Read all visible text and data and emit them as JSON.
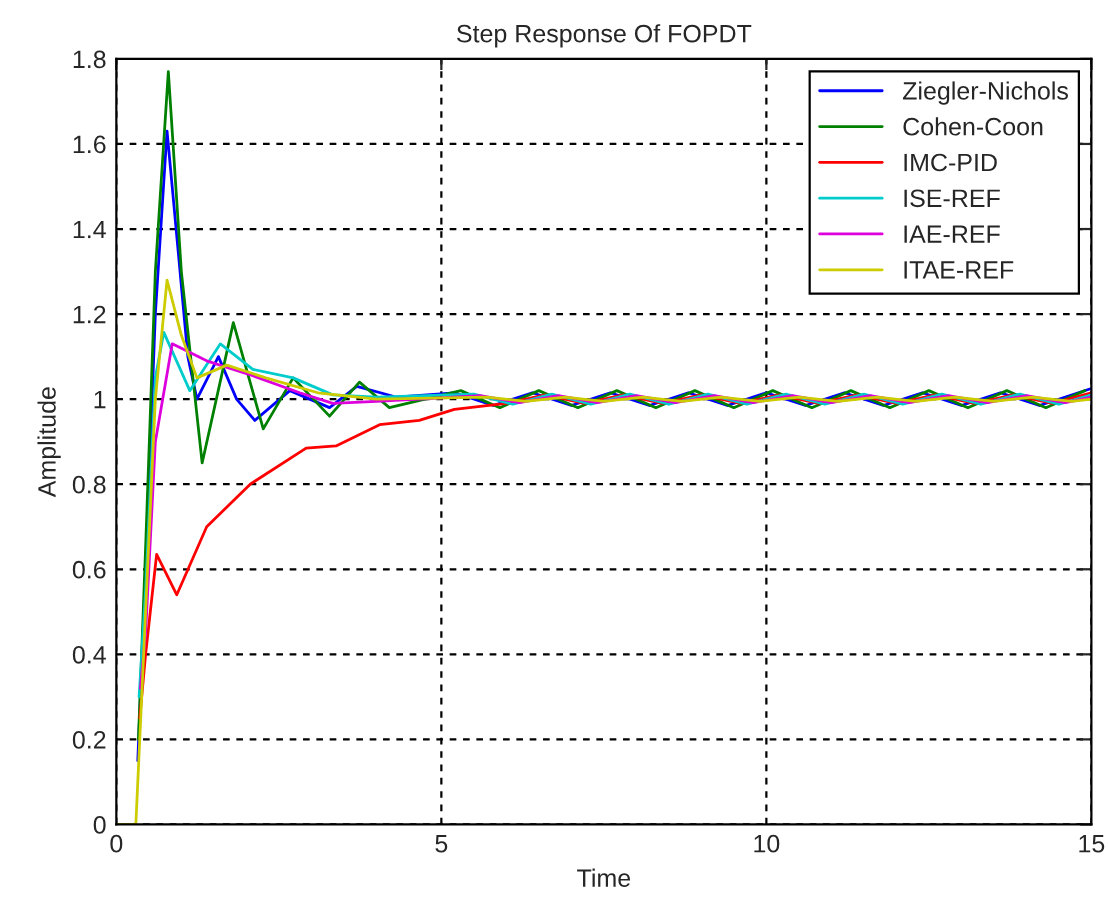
{
  "chart_data": {
    "type": "line",
    "title": "Step Response Of FOPDT",
    "xlabel": "Time",
    "ylabel": "Amplitude",
    "xlim": [
      0,
      15
    ],
    "xticks": [
      0,
      5,
      10,
      15
    ],
    "ylim": [
      0,
      1.8
    ],
    "yticks": [
      0,
      0.2,
      0.4,
      0.6,
      0.8,
      1,
      1.2,
      1.4,
      1.6,
      1.8
    ],
    "grid": true,
    "legend": "top right",
    "line_style": "solid",
    "marker": "none",
    "series": [
      {
        "name": "Ziegler-Nichols",
        "color": "#0000ff",
        "x": [
          0.33,
          0.45,
          0.6,
          0.78,
          0.95,
          1.1,
          1.24,
          1.57,
          1.85,
          2.13,
          2.67,
          3.28,
          3.7,
          4.3,
          5.2,
          5.8,
          6.4,
          7.0,
          7.6,
          8.2,
          8.8,
          9.4,
          10.0,
          10.6,
          11.2,
          11.8,
          12.4,
          13.0,
          13.6,
          14.2,
          14.8,
          15
        ],
        "values": [
          0.15,
          0.6,
          1.2,
          1.63,
          1.35,
          1.1,
          1.0,
          1.1,
          1.0,
          0.95,
          1.02,
          0.98,
          1.03,
          1.005,
          1.015,
          0.985,
          1.015,
          0.985,
          1.015,
          0.985,
          1.015,
          0.985,
          1.015,
          0.985,
          1.015,
          0.985,
          1.015,
          0.985,
          1.015,
          0.985,
          1.015,
          1.025
        ]
      },
      {
        "name": "Cohen-Coon",
        "color": "#008000",
        "x": [
          0.34,
          0.45,
          0.6,
          0.8,
          1.0,
          1.32,
          1.8,
          2.26,
          2.72,
          3.28,
          3.74,
          4.2,
          5.3,
          5.9,
          6.5,
          7.1,
          7.7,
          8.3,
          8.9,
          9.5,
          10.1,
          10.7,
          11.3,
          11.9,
          12.5,
          13.1,
          13.7,
          14.3,
          14.9
        ],
        "values": [
          0.2,
          0.65,
          1.3,
          1.77,
          1.3,
          0.85,
          1.18,
          0.93,
          1.05,
          0.96,
          1.04,
          0.98,
          1.02,
          0.98,
          1.02,
          0.98,
          1.02,
          0.98,
          1.02,
          0.98,
          1.02,
          0.98,
          1.02,
          0.98,
          1.02,
          0.98,
          1.02,
          0.98,
          1.02
        ]
      },
      {
        "name": "IMC-PID",
        "color": "#ff0000",
        "x": [
          0.36,
          0.45,
          0.62,
          0.93,
          1.39,
          2.06,
          2.92,
          3.38,
          4.05,
          4.66,
          5.2,
          6.0,
          6.6,
          7.2,
          7.8,
          8.4,
          9.0,
          9.6,
          10.2,
          10.8,
          11.4,
          12.0,
          12.6,
          13.2,
          13.8,
          14.4,
          15
        ],
        "values": [
          0.25,
          0.4,
          0.635,
          0.54,
          0.7,
          0.8,
          0.885,
          0.89,
          0.94,
          0.95,
          0.976,
          0.99,
          1.01,
          0.99,
          1.01,
          0.99,
          1.01,
          0.99,
          1.01,
          0.99,
          1.01,
          0.99,
          1.01,
          0.99,
          1.01,
          0.99,
          1.015
        ]
      },
      {
        "name": "ISE-REF",
        "color": "#00cccc",
        "x": [
          0.35,
          0.45,
          0.6,
          0.73,
          1.13,
          1.6,
          2.1,
          2.72,
          3.33,
          4.0,
          5.5,
          6.1,
          6.7,
          7.3,
          7.9,
          8.5,
          9.1,
          9.7,
          10.3,
          10.9,
          11.5,
          12.1,
          12.7,
          13.3,
          13.9,
          14.5,
          15
        ],
        "values": [
          0.3,
          0.55,
          1.05,
          1.157,
          1.02,
          1.13,
          1.07,
          1.05,
          1.01,
          1.005,
          1.012,
          0.988,
          1.012,
          0.988,
          1.012,
          0.988,
          1.012,
          0.988,
          1.012,
          0.988,
          1.012,
          0.988,
          1.012,
          0.988,
          1.012,
          0.988,
          1.01
        ]
      },
      {
        "name": "IAE-REF",
        "color": "#dd00dd",
        "x": [
          0.37,
          0.45,
          0.6,
          0.86,
          1.39,
          2.1,
          2.82,
          3.33,
          4.0,
          5.6,
          6.2,
          6.8,
          7.4,
          8.0,
          8.6,
          9.2,
          9.8,
          10.4,
          11.0,
          11.6,
          12.2,
          12.8,
          13.4,
          14.0,
          14.6,
          15
        ],
        "values": [
          0.32,
          0.45,
          0.9,
          1.13,
          1.09,
          1.055,
          1.015,
          0.99,
          0.995,
          1.008,
          0.992,
          1.008,
          0.992,
          1.008,
          0.992,
          1.008,
          0.992,
          1.008,
          0.992,
          1.008,
          0.992,
          1.008,
          0.992,
          1.008,
          0.992,
          1.005
        ]
      },
      {
        "name": "ITAE-REF",
        "color": "#cccc00",
        "x": [
          0,
          0.3,
          0.45,
          0.6,
          0.78,
          1.0,
          1.24,
          1.7,
          2.3,
          3.1,
          4.0,
          5.7,
          6.3,
          6.9,
          7.5,
          8.1,
          8.7,
          9.3,
          9.9,
          10.5,
          11.1,
          11.7,
          12.3,
          12.9,
          13.5,
          14.1,
          14.7,
          15
        ],
        "values": [
          0,
          0,
          0.5,
          1.0,
          1.28,
          1.15,
          1.05,
          1.08,
          1.05,
          1.015,
          1.0,
          1.005,
          0.995,
          1.005,
          0.995,
          1.005,
          0.995,
          1.005,
          0.995,
          1.005,
          0.995,
          1.005,
          0.995,
          1.005,
          0.995,
          1.005,
          0.995,
          1.0
        ]
      }
    ]
  }
}
